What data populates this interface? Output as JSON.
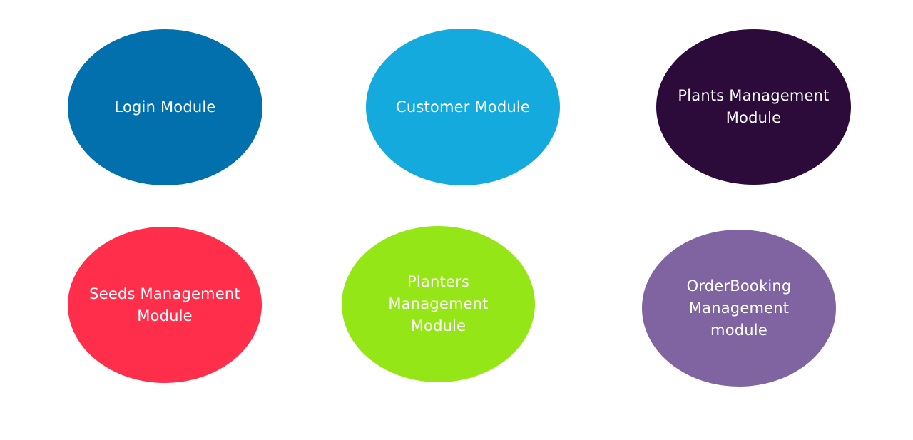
{
  "modules": [
    {
      "label": "Login Module",
      "color": "#0170ad"
    },
    {
      "label": "Customer Module",
      "color": "#14aadd"
    },
    {
      "label": "Plants Management Module",
      "color": "#2c0b3b"
    },
    {
      "label": "Seeds Management Module",
      "color": "#ff2f4c"
    },
    {
      "label": "Planters Management Module",
      "color": "#95e617"
    },
    {
      "label": "OrderBooking Management module",
      "color": "#8064a2"
    }
  ]
}
